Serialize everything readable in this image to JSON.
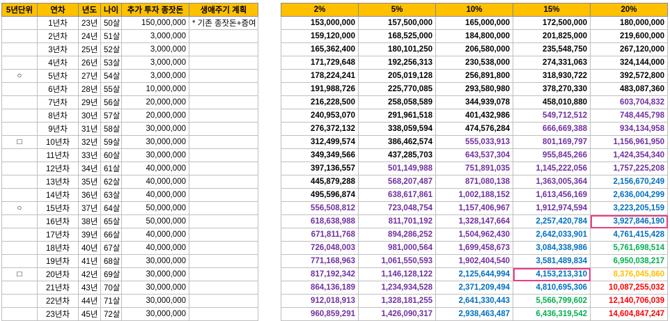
{
  "left_headers": [
    "5년단위",
    "연차",
    "년도",
    "나이",
    "추가 투자 종잣돈",
    "생애주기 계획"
  ],
  "right_headers": [
    "2%",
    "5%",
    "10%",
    "15%",
    "20%"
  ],
  "colors": {
    "black": "#000000",
    "purple": "#7030a0",
    "blue": "#0070c0",
    "green": "#00b050",
    "orange": "#ffc000",
    "red": "#ff0000"
  },
  "rows": [
    {
      "mark": "",
      "year": "1년차",
      "yr": "23년",
      "age": "50살",
      "invest": "150,000,000",
      "plan": "* 기존 종잣돈+증여",
      "vals": [
        [
          "153,000,000",
          "k"
        ],
        [
          "157,500,000",
          "k"
        ],
        [
          "165,000,000",
          "k"
        ],
        [
          "172,500,000",
          "k"
        ],
        [
          "180,000,000",
          "k"
        ]
      ]
    },
    {
      "mark": "",
      "year": "2년차",
      "yr": "24년",
      "age": "51살",
      "invest": "3,000,000",
      "plan": "",
      "vals": [
        [
          "159,120,000",
          "k"
        ],
        [
          "168,525,000",
          "k"
        ],
        [
          "184,800,000",
          "k"
        ],
        [
          "201,825,000",
          "k"
        ],
        [
          "219,600,000",
          "k"
        ]
      ]
    },
    {
      "mark": "",
      "year": "3년차",
      "yr": "25년",
      "age": "52살",
      "invest": "3,000,000",
      "plan": "",
      "vals": [
        [
          "165,362,400",
          "k"
        ],
        [
          "180,101,250",
          "k"
        ],
        [
          "206,580,000",
          "k"
        ],
        [
          "235,548,750",
          "k"
        ],
        [
          "267,120,000",
          "k"
        ]
      ]
    },
    {
      "mark": "",
      "year": "4년차",
      "yr": "26년",
      "age": "53살",
      "invest": "3,000,000",
      "plan": "",
      "vals": [
        [
          "171,729,648",
          "k"
        ],
        [
          "192,256,313",
          "k"
        ],
        [
          "230,538,000",
          "k"
        ],
        [
          "274,331,063",
          "k"
        ],
        [
          "324,144,000",
          "k"
        ]
      ]
    },
    {
      "mark": "○",
      "year": "5년차",
      "yr": "27년",
      "age": "54살",
      "invest": "3,000,000",
      "plan": "",
      "vals": [
        [
          "178,224,241",
          "k"
        ],
        [
          "205,019,128",
          "k"
        ],
        [
          "256,891,800",
          "k"
        ],
        [
          "318,930,722",
          "k"
        ],
        [
          "392,572,800",
          "k"
        ]
      ]
    },
    {
      "mark": "",
      "year": "6년차",
      "yr": "28년",
      "age": "55살",
      "invest": "10,000,000",
      "plan": "",
      "vals": [
        [
          "191,988,726",
          "k"
        ],
        [
          "225,770,085",
          "k"
        ],
        [
          "293,580,980",
          "k"
        ],
        [
          "378,270,330",
          "k"
        ],
        [
          "483,087,360",
          "k"
        ]
      ]
    },
    {
      "mark": "",
      "year": "7년차",
      "yr": "29년",
      "age": "56살",
      "invest": "20,000,000",
      "plan": "",
      "vals": [
        [
          "216,228,500",
          "k"
        ],
        [
          "258,058,589",
          "k"
        ],
        [
          "344,939,078",
          "k"
        ],
        [
          "458,010,880",
          "k"
        ],
        [
          "603,704,832",
          "p"
        ]
      ]
    },
    {
      "mark": "",
      "year": "8년차",
      "yr": "30년",
      "age": "57살",
      "invest": "20,000,000",
      "plan": "",
      "vals": [
        [
          "240,953,070",
          "k"
        ],
        [
          "291,961,518",
          "k"
        ],
        [
          "401,432,986",
          "k"
        ],
        [
          "549,712,512",
          "p"
        ],
        [
          "748,445,798",
          "p"
        ]
      ]
    },
    {
      "mark": "",
      "year": "9년차",
      "yr": "31년",
      "age": "58살",
      "invest": "30,000,000",
      "plan": "",
      "vals": [
        [
          "276,372,132",
          "k"
        ],
        [
          "338,059,594",
          "k"
        ],
        [
          "474,576,284",
          "k"
        ],
        [
          "666,669,388",
          "p"
        ],
        [
          "934,134,958",
          "p"
        ]
      ]
    },
    {
      "mark": "□",
      "year": "10년차",
      "yr": "32년",
      "age": "59살",
      "invest": "30,000,000",
      "plan": "",
      "vals": [
        [
          "312,499,574",
          "k"
        ],
        [
          "386,462,574",
          "k"
        ],
        [
          "555,033,913",
          "p"
        ],
        [
          "801,169,797",
          "p"
        ],
        [
          "1,156,961,950",
          "p"
        ]
      ]
    },
    {
      "mark": "",
      "year": "11년차",
      "yr": "33년",
      "age": "60살",
      "invest": "30,000,000",
      "plan": "",
      "vals": [
        [
          "349,349,566",
          "k"
        ],
        [
          "437,285,703",
          "k"
        ],
        [
          "643,537,304",
          "p"
        ],
        [
          "955,845,266",
          "p"
        ],
        [
          "1,424,354,340",
          "p"
        ]
      ]
    },
    {
      "mark": "",
      "year": "12년차",
      "yr": "34년",
      "age": "61살",
      "invest": "40,000,000",
      "plan": "",
      "vals": [
        [
          "397,136,557",
          "k"
        ],
        [
          "501,149,988",
          "p"
        ],
        [
          "751,891,035",
          "p"
        ],
        [
          "1,145,222,056",
          "p"
        ],
        [
          "1,757,225,208",
          "p"
        ]
      ]
    },
    {
      "mark": "",
      "year": "13년차",
      "yr": "35년",
      "age": "62살",
      "invest": "40,000,000",
      "plan": "",
      "vals": [
        [
          "445,879,288",
          "k"
        ],
        [
          "568,207,487",
          "p"
        ],
        [
          "871,080,138",
          "p"
        ],
        [
          "1,363,005,364",
          "p"
        ],
        [
          "2,156,670,249",
          "b"
        ]
      ]
    },
    {
      "mark": "",
      "year": "14년차",
      "yr": "36년",
      "age": "63살",
      "invest": "40,000,000",
      "plan": "",
      "vals": [
        [
          "495,596,874",
          "k"
        ],
        [
          "638,617,861",
          "p"
        ],
        [
          "1,002,188,152",
          "p"
        ],
        [
          "1,613,456,169",
          "p"
        ],
        [
          "2,636,004,299",
          "b"
        ]
      ]
    },
    {
      "mark": "○",
      "year": "15년차",
      "yr": "37년",
      "age": "64살",
      "invest": "50,000,000",
      "plan": "",
      "vals": [
        [
          "556,508,812",
          "p"
        ],
        [
          "723,048,754",
          "p"
        ],
        [
          "1,157,406,967",
          "p"
        ],
        [
          "1,912,974,594",
          "p"
        ],
        [
          "3,223,205,159",
          "b"
        ]
      ]
    },
    {
      "mark": "",
      "year": "16년차",
      "yr": "38년",
      "age": "65살",
      "invest": "50,000,000",
      "plan": "",
      "vals": [
        [
          "618,638,988",
          "p"
        ],
        [
          "811,701,192",
          "p"
        ],
        [
          "1,328,147,664",
          "p"
        ],
        [
          "2,257,420,784",
          "b"
        ],
        [
          "3,927,846,190",
          "b",
          "hl"
        ]
      ]
    },
    {
      "mark": "",
      "year": "17년차",
      "yr": "39년",
      "age": "66살",
      "invest": "40,000,000",
      "plan": "",
      "vals": [
        [
          "671,811,768",
          "p"
        ],
        [
          "894,286,252",
          "p"
        ],
        [
          "1,504,962,430",
          "p"
        ],
        [
          "2,642,033,901",
          "b"
        ],
        [
          "4,761,415,428",
          "b"
        ]
      ]
    },
    {
      "mark": "",
      "year": "18년차",
      "yr": "40년",
      "age": "67살",
      "invest": "40,000,000",
      "plan": "",
      "vals": [
        [
          "726,048,003",
          "p"
        ],
        [
          "981,000,564",
          "p"
        ],
        [
          "1,699,458,673",
          "p"
        ],
        [
          "3,084,338,986",
          "b"
        ],
        [
          "5,761,698,514",
          "g"
        ]
      ]
    },
    {
      "mark": "",
      "year": "19년차",
      "yr": "41년",
      "age": "68살",
      "invest": "30,000,000",
      "plan": "",
      "vals": [
        [
          "771,168,963",
          "p"
        ],
        [
          "1,061,550,593",
          "p"
        ],
        [
          "1,902,404,540",
          "p"
        ],
        [
          "3,581,489,834",
          "b"
        ],
        [
          "6,950,038,217",
          "g"
        ]
      ]
    },
    {
      "mark": "□",
      "year": "20년차",
      "yr": "42년",
      "age": "69살",
      "invest": "30,000,000",
      "plan": "",
      "vals": [
        [
          "817,192,342",
          "p"
        ],
        [
          "1,146,128,122",
          "p"
        ],
        [
          "2,125,644,994",
          "b"
        ],
        [
          "4,153,213,310",
          "b",
          "hl"
        ],
        [
          "8,376,045,860",
          "o"
        ]
      ]
    },
    {
      "mark": "",
      "year": "21년차",
      "yr": "43년",
      "age": "70살",
      "invest": "30,000,000",
      "plan": "",
      "vals": [
        [
          "864,136,189",
          "p"
        ],
        [
          "1,234,934,528",
          "p"
        ],
        [
          "2,371,209,494",
          "b"
        ],
        [
          "4,810,695,306",
          "b"
        ],
        [
          "10,087,255,032",
          "r"
        ]
      ]
    },
    {
      "mark": "",
      "year": "22년차",
      "yr": "44년",
      "age": "71살",
      "invest": "30,000,000",
      "plan": "",
      "vals": [
        [
          "912,018,913",
          "p"
        ],
        [
          "1,328,181,255",
          "p"
        ],
        [
          "2,641,330,443",
          "b"
        ],
        [
          "5,566,799,602",
          "g"
        ],
        [
          "12,140,706,039",
          "r"
        ]
      ]
    },
    {
      "mark": "",
      "year": "23년차",
      "yr": "45년",
      "age": "72살",
      "invest": "30,000,000",
      "plan": "",
      "vals": [
        [
          "960,859,291",
          "p"
        ],
        [
          "1,426,090,317",
          "p"
        ],
        [
          "2,938,463,487",
          "b"
        ],
        [
          "6,436,319,542",
          "g"
        ],
        [
          "14,604,847,247",
          "r"
        ]
      ]
    }
  ]
}
